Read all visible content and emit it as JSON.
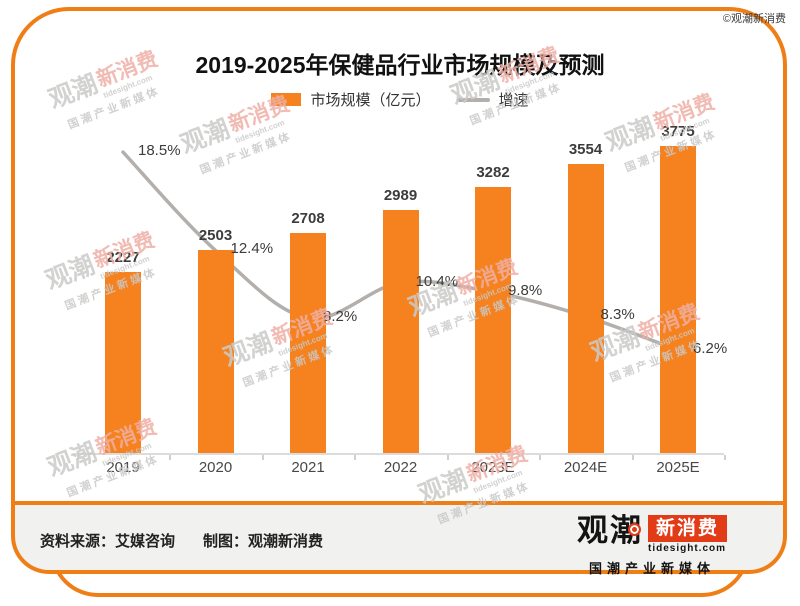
{
  "page": {
    "copyright": "©观潮新消费"
  },
  "legend": {
    "bar_label": "市场规模（亿元）",
    "line_label": "增速"
  },
  "chart_data": {
    "type": "bar",
    "title": "2019-2025年保健品行业市场规模及预测",
    "categories": [
      "2019",
      "2020",
      "2021",
      "2022",
      "2023E",
      "2024E",
      "2025E"
    ],
    "series": [
      {
        "name": "市场规模（亿元）",
        "type": "bar",
        "values": [
          2227,
          2503,
          2708,
          2989,
          3282,
          3554,
          3775
        ]
      },
      {
        "name": "增速",
        "type": "line",
        "unit": "%",
        "values": [
          18.5,
          12.4,
          8.2,
          10.4,
          9.8,
          8.3,
          6.2
        ]
      }
    ],
    "xlabel": "",
    "ylabel": "",
    "legend_position": "top",
    "grid": false,
    "value_labels": true
  },
  "footer": {
    "source": "资料来源：艾媒咨询",
    "credit": "制图：观潮新消费"
  },
  "logo": {
    "name": "观潮",
    "highlight": "新消费",
    "domain": "tidesight.com",
    "tagline": "国潮产业新媒体"
  },
  "watermark": {
    "name": "观潮",
    "highlight": "新消费",
    "domain": "tidesight.com",
    "tagline": "国潮产业新媒体"
  },
  "colors": {
    "bar_orange": "#f5821f",
    "border_orange": "#ef7e17",
    "line_gray": "#b2afac",
    "logo_red": "#e23b17",
    "footer_bg": "#f1f1ef"
  }
}
